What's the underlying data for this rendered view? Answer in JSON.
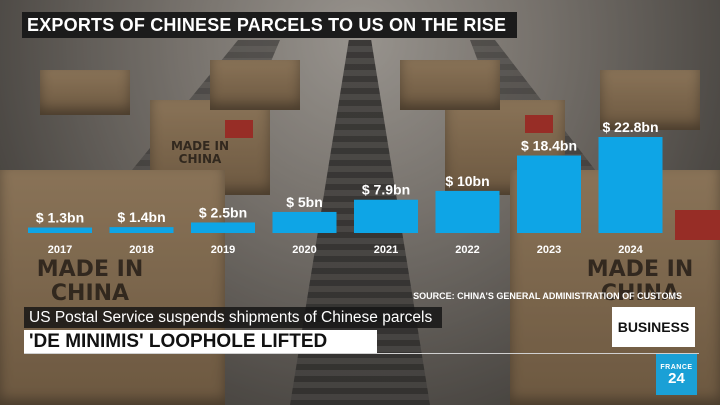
{
  "title": "EXPORTS OF CHINESE PARCELS TO US ON THE RISE",
  "source": "SOURCE: CHINA'S GENERAL ADMINISTRATION OF CUSTOMS",
  "lower_third": {
    "subtitle": "US Postal Service suspends shipments of Chinese parcels",
    "headline": "'DE MINIMIS' LOOPHOLE LIFTED"
  },
  "badge": "BUSINESS",
  "logo": {
    "line1": "FRANCE",
    "line2": "24"
  },
  "background_text": [
    "MADE IN CHINA",
    "MADE IN CHINA",
    "MADE IN CHINA"
  ],
  "colors": {
    "bar": "#0ea5e6",
    "title_bg": "#1b1b1b",
    "logo_bg": "#1aa0d6"
  },
  "chart_data": {
    "type": "bar",
    "categories": [
      "2017",
      "2018",
      "2019",
      "2020",
      "2021",
      "2022",
      "2023",
      "2024"
    ],
    "values": [
      1.3,
      1.4,
      2.5,
      5,
      7.9,
      10,
      18.4,
      22.8
    ],
    "value_labels": [
      "$ 1.3bn",
      "$ 1.4bn",
      "$ 2.5bn",
      "$ 5bn",
      "$ 7.9bn",
      "$ 10bn",
      "$ 18.4bn",
      "$ 22.8bn"
    ],
    "title": "EXPORTS OF CHINESE PARCELS TO US ON THE RISE",
    "xlabel": "",
    "ylabel": "",
    "ylim": [
      0,
      22.8
    ],
    "grid": false
  }
}
